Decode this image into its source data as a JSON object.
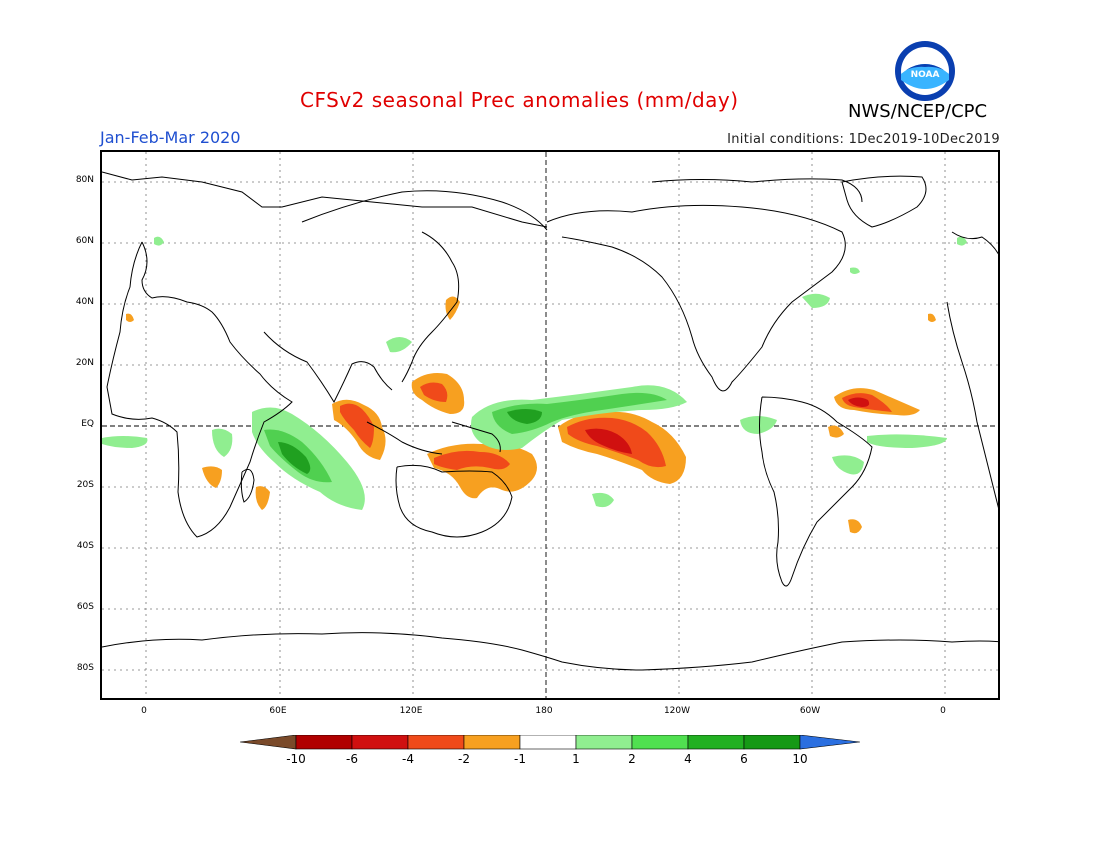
{
  "header": {
    "title": "CFSv2 seasonal Prec anomalies (mm/day)",
    "agency": "NWS/NCEP/CPC",
    "season": "Jan-Feb-Mar 2020",
    "initial_conditions": "Initial conditions: 1Dec2019-10Dec2019",
    "logo_text": "NOAA"
  },
  "axes": {
    "lat_labels": [
      "80N",
      "60N",
      "40N",
      "20N",
      "EQ",
      "20S",
      "40S",
      "60S",
      "80S"
    ],
    "lon_labels": [
      "0",
      "60E",
      "120E",
      "180",
      "120W",
      "60W",
      "0"
    ]
  },
  "legend": {
    "labels": [
      "-10",
      "-6",
      "-4",
      "-2",
      "-1",
      "1",
      "2",
      "4",
      "6",
      "10"
    ],
    "colors": [
      "#7a4a2a",
      "#b00000",
      "#d01010",
      "#f04a1a",
      "#f7a020",
      "#ffffff",
      "#90ee90",
      "#50e050",
      "#22b022",
      "#159915",
      "#2b6fe0"
    ]
  },
  "colors": {
    "dry_strong": "#e83010",
    "dry": "#f7a020",
    "wet": "#90ee90",
    "wet_mid": "#50d050",
    "wet_strong": "#20a020",
    "title": "#e00000",
    "season": "#1f4fd0"
  }
}
